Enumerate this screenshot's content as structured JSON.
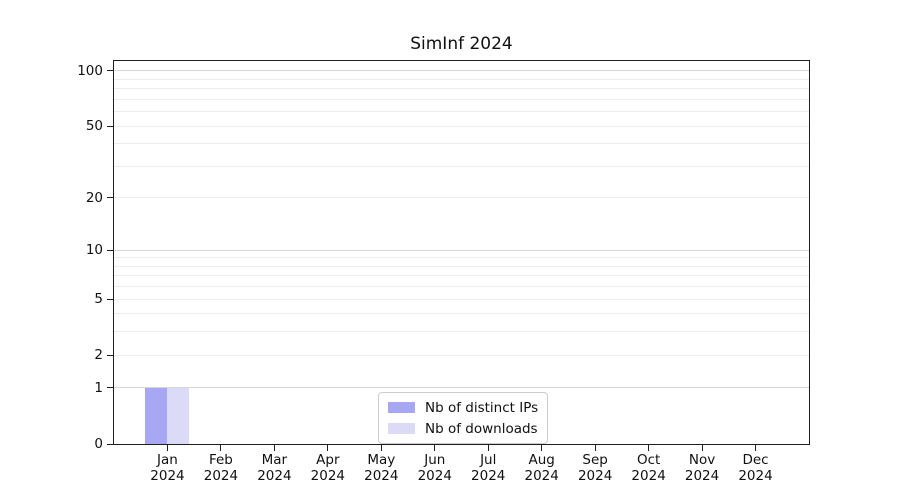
{
  "chart_data": {
    "type": "bar",
    "title": "SimInf 2024",
    "categories": [
      "Jan",
      "Feb",
      "Mar",
      "Apr",
      "May",
      "Jun",
      "Jul",
      "Aug",
      "Sep",
      "Oct",
      "Nov",
      "Dec"
    ],
    "category_year": "2024",
    "series": [
      {
        "name": "Nb of distinct IPs",
        "color": "#a7a7f4",
        "values": [
          1,
          0,
          0,
          0,
          0,
          0,
          0,
          0,
          0,
          0,
          0,
          0
        ]
      },
      {
        "name": "Nb of downloads",
        "color": "#dbdbf8",
        "values": [
          1,
          0,
          0,
          0,
          0,
          0,
          0,
          0,
          0,
          0,
          0,
          0
        ]
      }
    ],
    "xlabel": "",
    "ylabel": "",
    "yscale": "log1p",
    "ylim": [
      0,
      113
    ],
    "ytick_values": [
      0,
      1,
      2,
      5,
      10,
      20,
      50,
      100
    ],
    "ytick_labels": [
      "0",
      "1",
      "2",
      "5",
      "10",
      "20",
      "50",
      "100"
    ],
    "major_gridlines": [
      1,
      10,
      100
    ],
    "minor_gridlines": [
      2,
      3,
      4,
      5,
      6,
      7,
      8,
      9,
      20,
      30,
      40,
      50,
      60,
      70,
      80,
      90
    ],
    "grid": "horizontal",
    "legend_position": "lower center",
    "colors": {
      "major_grid": "#d6d6d6",
      "minor_grid": "#ededed",
      "spine": "#1f1f1f",
      "text": "#111111"
    }
  }
}
